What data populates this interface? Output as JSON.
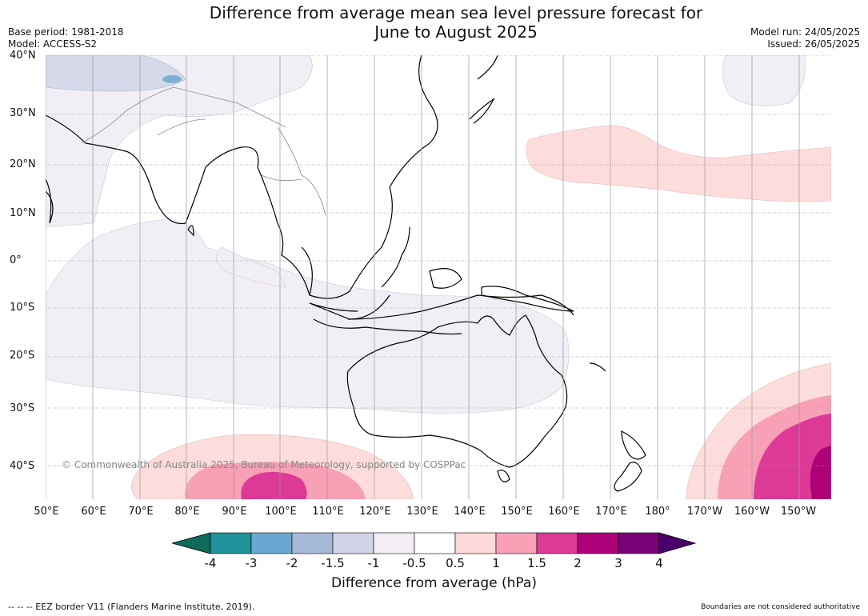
{
  "title_line1": "Difference from average mean sea level pressure forecast for",
  "title_line2": "June to August 2025",
  "base_period": "Base period: 1981-2018",
  "model": "Model: ACCESS-S2",
  "model_run": "Model run: 24/05/2025",
  "issued": "Issued: 26/05/2025",
  "lat_labels": [
    "40°N",
    "30°N",
    "20°N",
    "10°N",
    "0°",
    "10°S",
    "20°S",
    "30°S",
    "40°S"
  ],
  "lon_labels": [
    "50°E",
    "60°E",
    "70°E",
    "80°E",
    "90°E",
    "100°E",
    "110°E",
    "120°E",
    "130°E",
    "140°E",
    "150°E",
    "160°E",
    "170°E",
    "180°",
    "170°W",
    "160°W",
    "150°W"
  ],
  "copyright": "© Commonwealth of Australia 2025, Bureau of Meteorology, supported by COSPPac",
  "colorbar": {
    "ticks": [
      "-4",
      "-3",
      "-2",
      "-1.5",
      "-1",
      "-0.5",
      "0.5",
      "1",
      "1.5",
      "2",
      "3",
      "4"
    ],
    "colors": [
      "#0c6b5a",
      "#1f9399",
      "#6aa8cf",
      "#a7b9d8",
      "#d2d3e6",
      "#f3eff5",
      "#ffffff",
      "#fdd9d9",
      "#f8a0b6",
      "#dd3a97",
      "#ae0179",
      "#7a0177",
      "#49006a"
    ],
    "label": "Difference from average (hPa)"
  },
  "footer_left": "--  --  -- EEZ border V11 (Flanders Marine Institute, 2019).",
  "footer_right": "Boundaries are not considered authoritative"
}
